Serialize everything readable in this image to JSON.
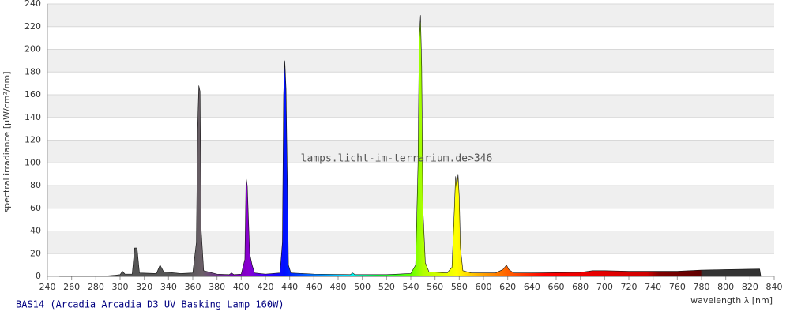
{
  "chart_data": {
    "type": "area",
    "title": "BAS14 (Arcadia Arcadia D3 UV Basking Lamp 160W)",
    "watermark": "lamps.licht-im-terrarium.de>346",
    "x_label": "wavelength λ [nm]",
    "y_label": "spectral irradiance [µW/cm²/nm]",
    "x": [
      250,
      270,
      290,
      296,
      300,
      302,
      304,
      310,
      312,
      314,
      316,
      330,
      333,
      336,
      350,
      360,
      363,
      364,
      365,
      366,
      367,
      369,
      380,
      390,
      392,
      394,
      400,
      403,
      404,
      405,
      406,
      407,
      409,
      411,
      420,
      432,
      434,
      435,
      436,
      437,
      438,
      439,
      441,
      460,
      490,
      492,
      494,
      520,
      540,
      544,
      546,
      547,
      548,
      549,
      550,
      552,
      555,
      570,
      574,
      576,
      577,
      578,
      579,
      580,
      581,
      583,
      590,
      600,
      610,
      616,
      619,
      621,
      625,
      640,
      680,
      690,
      700,
      720,
      760,
      780,
      800,
      828,
      829
    ],
    "values": [
      0.5,
      0.5,
      0.5,
      1,
      1.5,
      4.5,
      2,
      2,
      25,
      25,
      3,
      2.5,
      10,
      4,
      2.5,
      3,
      30,
      130,
      168,
      163,
      40,
      5,
      2,
      1.5,
      3,
      1.5,
      2,
      15,
      87,
      80,
      50,
      20,
      10,
      3,
      2,
      3,
      30,
      160,
      190,
      165,
      90,
      10,
      3,
      2,
      1.5,
      3,
      1.5,
      1.5,
      2.5,
      10,
      100,
      210,
      230,
      185,
      60,
      12,
      4,
      3,
      8,
      60,
      88,
      78,
      90,
      70,
      25,
      5,
      3,
      3,
      3,
      6,
      10,
      6,
      3,
      3,
      3.5,
      5,
      5,
      4.5,
      4.5,
      5.5,
      6,
      6.5,
      0
    ],
    "color_stops": [
      {
        "at": 250,
        "color": "#555555"
      },
      {
        "at": 355,
        "color": "#555555"
      },
      {
        "at": 368,
        "color": "#6b5f68"
      },
      {
        "at": 395,
        "color": "#7000b0"
      },
      {
        "at": 406,
        "color": "#8a00d0"
      },
      {
        "at": 422,
        "color": "#3000ff"
      },
      {
        "at": 436,
        "color": "#0010ff"
      },
      {
        "at": 462,
        "color": "#0080ff"
      },
      {
        "at": 490,
        "color": "#00f0ff"
      },
      {
        "at": 512,
        "color": "#00ff40"
      },
      {
        "at": 540,
        "color": "#60ff00"
      },
      {
        "at": 550,
        "color": "#b0ff00"
      },
      {
        "at": 578,
        "color": "#ffff00"
      },
      {
        "at": 600,
        "color": "#ffa000"
      },
      {
        "at": 620,
        "color": "#ff6000"
      },
      {
        "at": 650,
        "color": "#ff0000"
      },
      {
        "at": 735,
        "color": "#d00000"
      },
      {
        "at": 745,
        "color": "#800000"
      },
      {
        "at": 779,
        "color": "#600000"
      },
      {
        "at": 781,
        "color": "#333333"
      },
      {
        "at": 830,
        "color": "#333333"
      }
    ],
    "xlim": [
      240,
      840
    ],
    "ylim": [
      0,
      240
    ],
    "xticks": [
      240,
      260,
      280,
      300,
      320,
      340,
      360,
      380,
      400,
      420,
      440,
      460,
      480,
      500,
      520,
      540,
      560,
      580,
      600,
      620,
      640,
      660,
      680,
      700,
      720,
      740,
      760,
      780,
      800,
      820,
      840
    ],
    "yticks": [
      0,
      20,
      40,
      60,
      80,
      100,
      120,
      140,
      160,
      180,
      200,
      220,
      240
    ],
    "grid": true
  }
}
